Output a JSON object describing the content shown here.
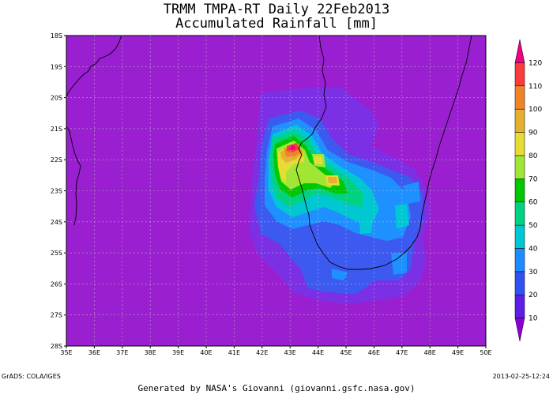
{
  "title": {
    "line1": "TRMM TMPA-RT Daily 22Feb2013",
    "line2": "Accumulated Rainfall [mm]"
  },
  "axes": {
    "lat_labels": [
      "18S",
      "19S",
      "20S",
      "21S",
      "22S",
      "23S",
      "24S",
      "25S",
      "26S",
      "27S",
      "28S"
    ],
    "lon_labels": [
      "35E",
      "36E",
      "37E",
      "38E",
      "39E",
      "40E",
      "41E",
      "42E",
      "43E",
      "44E",
      "45E",
      "46E",
      "47E",
      "48E",
      "49E",
      "50E"
    ]
  },
  "colorbar": {
    "labels": [
      "10",
      "20",
      "30",
      "40",
      "50",
      "60",
      "70",
      "80",
      "90",
      "100",
      "110",
      "120"
    ],
    "colors": [
      "#8d00d4",
      "#5e1ee8",
      "#2f52f2",
      "#1e8cff",
      "#00c8d2",
      "#00d282",
      "#00c800",
      "#a0e632",
      "#e6dc32",
      "#e6af2d",
      "#f08228",
      "#fa3c3c",
      "#f00082"
    ]
  },
  "map": {
    "background": "#9a1fd0",
    "lon_range": [
      35,
      50
    ],
    "lat_range": [
      -28,
      -18
    ]
  },
  "footer": {
    "left": "GrADS: COLA/IGES",
    "right": "2013-02-25-12:24",
    "center": "Generated by NASA's Giovanni (giovanni.gsfc.nasa.gov)"
  }
}
